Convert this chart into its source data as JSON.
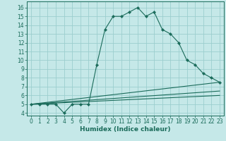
{
  "title": "",
  "xlabel": "Humidex (Indice chaleur)",
  "background_color": "#c5e8e8",
  "line_color": "#1a6b5a",
  "grid_color": "#9ccece",
  "xlim": [
    -0.5,
    23.5
  ],
  "ylim": [
    3.7,
    16.7
  ],
  "xticks": [
    0,
    1,
    2,
    3,
    4,
    5,
    6,
    7,
    8,
    9,
    10,
    11,
    12,
    13,
    14,
    15,
    16,
    17,
    18,
    19,
    20,
    21,
    22,
    23
  ],
  "yticks": [
    4,
    5,
    6,
    7,
    8,
    9,
    10,
    11,
    12,
    13,
    14,
    15,
    16
  ],
  "main_line": {
    "x": [
      0,
      1,
      2,
      3,
      4,
      5,
      6,
      7,
      8,
      9,
      10,
      11,
      12,
      13,
      14,
      15,
      16,
      17,
      18,
      19,
      20,
      21,
      22,
      23
    ],
    "y": [
      5,
      5,
      5,
      5,
      4,
      5,
      5,
      5,
      9.5,
      13.5,
      15,
      15,
      15.5,
      16,
      15,
      15.5,
      13.5,
      13,
      12,
      10,
      9.5,
      8.5,
      8,
      7.5
    ]
  },
  "ref_lines": [
    {
      "x": [
        0,
        23
      ],
      "y": [
        5,
        7.5
      ]
    },
    {
      "x": [
        0,
        23
      ],
      "y": [
        5,
        6.5
      ]
    },
    {
      "x": [
        0,
        23
      ],
      "y": [
        5,
        6.0
      ]
    }
  ]
}
